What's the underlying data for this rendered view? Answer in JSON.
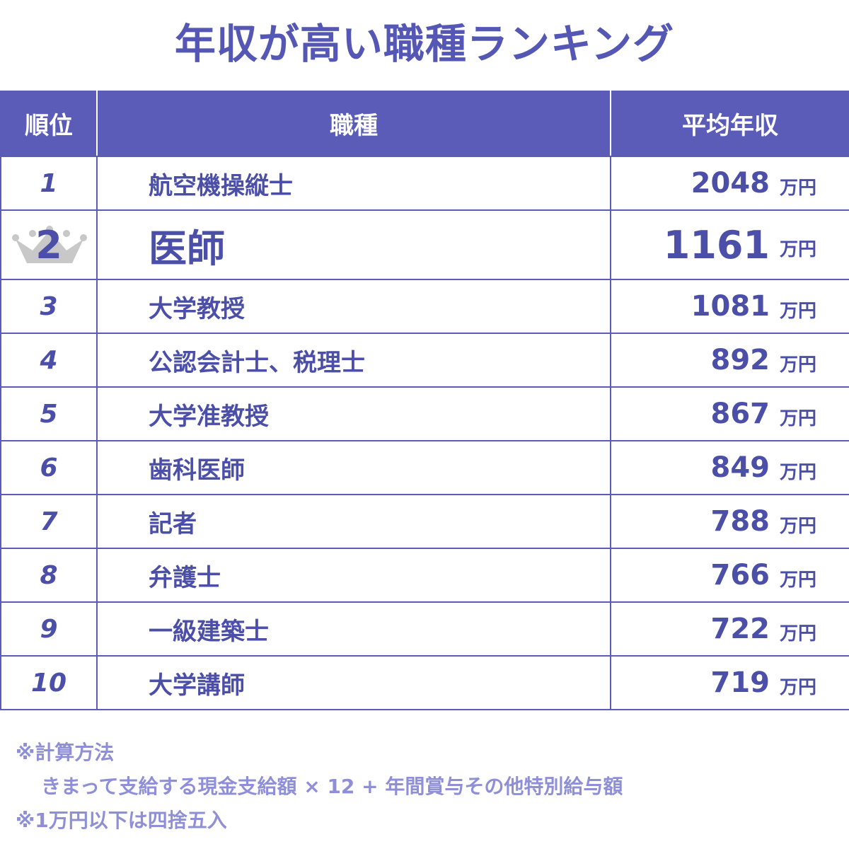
{
  "title": "年収が高い職種ランキング",
  "table": {
    "headers": {
      "rank": "順位",
      "job": "職種",
      "salary": "平均年収"
    },
    "unit": "万円",
    "rows": [
      {
        "rank": "1",
        "job": "航空機操縦士",
        "salary": "2048"
      },
      {
        "rank": "2",
        "job": "医師",
        "salary": "1161",
        "highlight": true,
        "icon": "crown-icon"
      },
      {
        "rank": "3",
        "job": "大学教授",
        "salary": "1081"
      },
      {
        "rank": "4",
        "job": "公認会計士、税理士",
        "salary": "892"
      },
      {
        "rank": "5",
        "job": "大学准教授",
        "salary": "867"
      },
      {
        "rank": "6",
        "job": "歯科医師",
        "salary": "849"
      },
      {
        "rank": "7",
        "job": "記者",
        "salary": "788"
      },
      {
        "rank": "8",
        "job": "弁護士",
        "salary": "766"
      },
      {
        "rank": "9",
        "job": "一級建築士",
        "salary": "722"
      },
      {
        "rank": "10",
        "job": "大学講師",
        "salary": "719"
      }
    ]
  },
  "notes": {
    "method_title": "※計算方法",
    "method_formula": "きまって支給する現金支給額 × 12 + 年間賞与その他特別給与額",
    "rounding": "※1万円以下は四捨五入"
  },
  "colors": {
    "accent": "#5a5cb8",
    "text": "#4b4fa8",
    "note": "#8f8fd8",
    "crown": "#c8c8c8"
  }
}
